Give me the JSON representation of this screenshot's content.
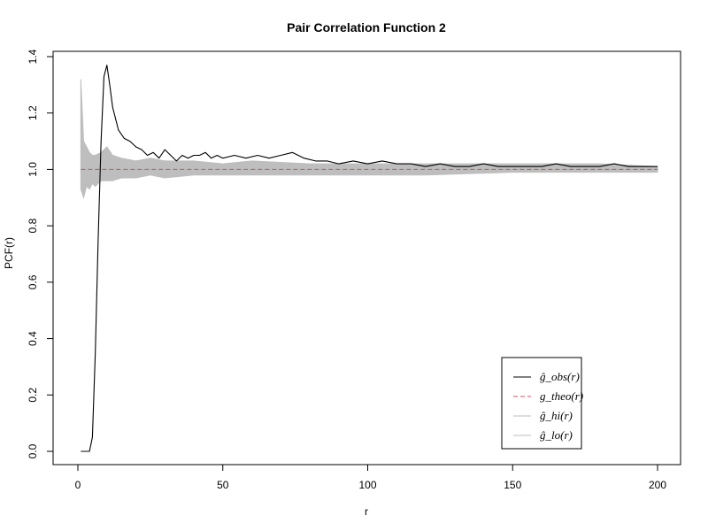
{
  "chart_data": {
    "type": "line",
    "title": "Pair Correlation Function 2",
    "xlabel": "r",
    "ylabel": "PCF(r)",
    "xlim": [
      0,
      200
    ],
    "ylim": [
      0,
      1.4
    ],
    "x_ticks": [
      0,
      50,
      100,
      150,
      200
    ],
    "y_ticks": [
      0.0,
      0.2,
      0.4,
      0.6,
      0.8,
      1.0,
      1.2,
      1.4
    ],
    "grid": false,
    "legend_position": "bottom-right",
    "colors": {
      "obs": "#000000",
      "theo": "#d05060",
      "envelope": "#bebebe"
    },
    "series": [
      {
        "key": "obs",
        "legend_text": "ĝ_obs(r)",
        "style": "solid",
        "x": [
          1,
          4,
          5,
          6,
          7,
          8,
          9,
          10,
          11,
          12,
          14,
          16,
          18,
          20,
          22,
          24,
          26,
          28,
          30,
          32,
          34,
          36,
          38,
          40,
          42,
          44,
          46,
          48,
          50,
          54,
          58,
          62,
          66,
          70,
          74,
          78,
          82,
          86,
          90,
          95,
          100,
          105,
          110,
          115,
          120,
          125,
          130,
          135,
          140,
          145,
          150,
          155,
          160,
          165,
          170,
          175,
          180,
          185,
          190,
          195,
          200
        ],
        "y": [
          0.0,
          0.0,
          0.05,
          0.35,
          0.75,
          1.1,
          1.33,
          1.37,
          1.3,
          1.22,
          1.14,
          1.11,
          1.1,
          1.08,
          1.07,
          1.05,
          1.06,
          1.04,
          1.07,
          1.05,
          1.03,
          1.05,
          1.04,
          1.05,
          1.05,
          1.06,
          1.04,
          1.05,
          1.04,
          1.05,
          1.04,
          1.05,
          1.04,
          1.05,
          1.06,
          1.04,
          1.03,
          1.03,
          1.02,
          1.03,
          1.02,
          1.03,
          1.02,
          1.02,
          1.01,
          1.02,
          1.01,
          1.01,
          1.02,
          1.01,
          1.01,
          1.01,
          1.01,
          1.02,
          1.01,
          1.01,
          1.01,
          1.02,
          1.01,
          1.01,
          1.01
        ]
      },
      {
        "key": "theo",
        "legend_text": "g_theo(r)",
        "style": "dashed",
        "x": [
          1,
          200
        ],
        "y": [
          1.0,
          1.0
        ]
      },
      {
        "key": "hi",
        "legend_text": "ĝ_hi(r)",
        "style": "band-upper",
        "x": [
          1,
          2,
          3,
          4,
          5,
          6,
          8,
          10,
          12,
          15,
          20,
          25,
          30,
          40,
          50,
          60,
          80,
          100,
          120,
          150,
          180,
          200
        ],
        "y": [
          1.32,
          1.1,
          1.08,
          1.06,
          1.05,
          1.05,
          1.06,
          1.08,
          1.05,
          1.04,
          1.03,
          1.04,
          1.03,
          1.03,
          1.02,
          1.03,
          1.02,
          1.02,
          1.02,
          1.02,
          1.02,
          1.01
        ]
      },
      {
        "key": "lo",
        "legend_text": "ĝ_lo(r)",
        "style": "band-lower",
        "x": [
          1,
          2,
          3,
          4,
          5,
          6,
          8,
          10,
          12,
          15,
          20,
          25,
          30,
          40,
          50,
          60,
          80,
          100,
          120,
          150,
          180,
          200
        ],
        "y": [
          0.93,
          0.9,
          0.94,
          0.93,
          0.95,
          0.94,
          0.96,
          0.96,
          0.96,
          0.97,
          0.97,
          0.98,
          0.97,
          0.98,
          0.98,
          0.98,
          0.98,
          0.98,
          0.98,
          0.99,
          0.99,
          0.99
        ]
      }
    ]
  }
}
